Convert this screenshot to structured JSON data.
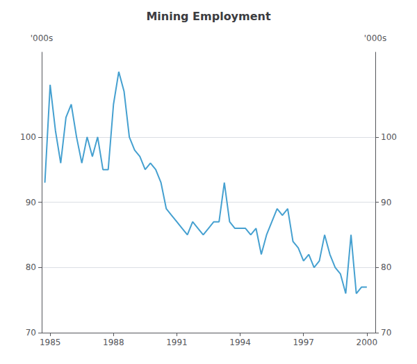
{
  "chart_data": {
    "type": "line",
    "title": "Mining Employment",
    "ylabel": "'000s",
    "y2label": "'000s",
    "x": [
      1984.75,
      1985.0,
      1985.25,
      1985.5,
      1985.75,
      1986.0,
      1986.25,
      1986.5,
      1986.75,
      1987.0,
      1987.25,
      1987.5,
      1987.75,
      1988.0,
      1988.25,
      1988.5,
      1988.75,
      1989.0,
      1989.25,
      1989.5,
      1989.75,
      1990.0,
      1990.25,
      1990.5,
      1990.75,
      1991.0,
      1991.25,
      1991.5,
      1991.75,
      1992.0,
      1992.25,
      1992.5,
      1992.75,
      1993.0,
      1993.25,
      1993.5,
      1993.75,
      1994.0,
      1994.25,
      1994.5,
      1994.75,
      1995.0,
      1995.25,
      1995.5,
      1995.75,
      1996.0,
      1996.25,
      1996.5,
      1996.75,
      1997.0,
      1997.25,
      1997.5,
      1997.75,
      1998.0,
      1998.25,
      1998.5,
      1998.75,
      1999.0,
      1999.25,
      1999.5,
      1999.75,
      2000.0
    ],
    "values": [
      93,
      108,
      101,
      96,
      103,
      105,
      100,
      96,
      100,
      97,
      100,
      95,
      95,
      105,
      110,
      107,
      100,
      98,
      97,
      95,
      96,
      95,
      93,
      89,
      88,
      87,
      86,
      85,
      87,
      86,
      85,
      86,
      87,
      87,
      93,
      87,
      86,
      86,
      86,
      85,
      86,
      82,
      85,
      87,
      89,
      88,
      89,
      84,
      83,
      81,
      82,
      80,
      81,
      85,
      82,
      80,
      79,
      76,
      85,
      76,
      77,
      77
    ],
    "color": "#45a0d0",
    "xlim": [
      1984.6,
      2000.4
    ],
    "xticks": [
      1985,
      1988,
      1991,
      1994,
      1997,
      2000
    ],
    "ylim": [
      70,
      113
    ],
    "yticks": [
      70,
      80,
      90,
      100
    ],
    "y2lim": [
      70,
      113
    ],
    "y2ticks": [
      70,
      80,
      90,
      100
    ],
    "grid": true
  }
}
